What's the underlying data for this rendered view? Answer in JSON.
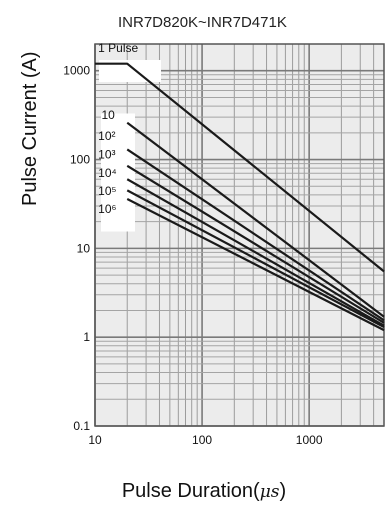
{
  "chart_data": {
    "type": "line",
    "title": "INR7D820K~INR7D471K",
    "xlabel_main": "Pulse Duration(",
    "xlabel_unit": "μs",
    "xlabel_close": ")",
    "ylabel": "Pulse Current (A)",
    "x_scale": "log",
    "y_scale": "log",
    "xlim": [
      10,
      5000
    ],
    "ylim": [
      0.1,
      2000
    ],
    "xticks": [
      10,
      100,
      1000
    ],
    "xtick_labels": [
      "10",
      "100",
      "1000"
    ],
    "yticks": [
      0.1,
      1,
      10,
      100,
      1000
    ],
    "ytick_labels": [
      "0.1",
      "1",
      "10",
      "100",
      "1000"
    ],
    "grid": true,
    "series": [
      {
        "name": "1 Pulse",
        "x": [
          10,
          20,
          5000
        ],
        "y": [
          1200,
          1200,
          5.5
        ]
      },
      {
        "name": "10",
        "x": [
          20,
          5000
        ],
        "y": [
          260,
          1.7
        ]
      },
      {
        "name": "10²",
        "x": [
          20,
          5000
        ],
        "y": [
          130,
          1.55
        ]
      },
      {
        "name": "10³",
        "x": [
          20,
          5000
        ],
        "y": [
          85,
          1.45
        ]
      },
      {
        "name": "10⁴",
        "x": [
          20,
          5000
        ],
        "y": [
          60,
          1.35
        ]
      },
      {
        "name": "10⁵",
        "x": [
          20,
          5000
        ],
        "y": [
          45,
          1.3
        ]
      },
      {
        "name": "10⁶",
        "x": [
          20,
          5000
        ],
        "y": [
          36,
          1.2
        ]
      }
    ],
    "series_labels": [
      {
        "text": "1 Pulse",
        "x": 10.7,
        "y": 1620
      },
      {
        "text": "10",
        "x": 11.5,
        "y": 285
      },
      {
        "text": "10²",
        "x": 10.7,
        "y": 165
      },
      {
        "text": "10³",
        "x": 10.7,
        "y": 103
      },
      {
        "text": "10⁴",
        "x": 10.7,
        "y": 64
      },
      {
        "text": "10⁵",
        "x": 10.7,
        "y": 40
      },
      {
        "text": "10⁶",
        "x": 10.7,
        "y": 25
      }
    ]
  }
}
